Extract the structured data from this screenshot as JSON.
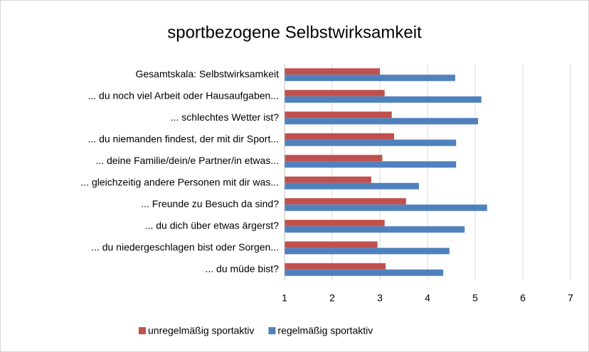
{
  "chart_data": {
    "type": "hbar",
    "title": "sportbezogene Selbstwirksamkeit",
    "categories": [
      "Gesamtskala: Selbstwirksamkeit",
      "... du noch viel Arbeit oder Hausaufgaben...",
      "... schlechtes Wetter ist?",
      "... du niemanden findest, der mit dir Sport...",
      "... deine Familie/dein/e Partner/in etwas...",
      "... gleichzeitig andere Personen mit dir was...",
      "... Freunde zu Besuch da sind?",
      "... du dich über etwas ärgerst?",
      "... du niedergeschlagen bist oder Sorgen...",
      "... du müde bist?"
    ],
    "series": [
      {
        "name": "unregelmäßig sportaktiv",
        "color": "#c0504d",
        "values": [
          3.0,
          3.1,
          3.25,
          3.3,
          3.05,
          2.82,
          3.55,
          3.1,
          2.95,
          3.12
        ]
      },
      {
        "name": "regelmäßig sportaktiv",
        "color": "#4f81bd",
        "values": [
          4.58,
          5.13,
          5.06,
          4.6,
          4.6,
          3.82,
          5.25,
          4.78,
          4.46,
          4.33
        ]
      }
    ],
    "xlim": [
      1,
      7
    ],
    "xticks": [
      1,
      2,
      3,
      4,
      5,
      6,
      7
    ],
    "grid": true,
    "legend": "bottom"
  }
}
